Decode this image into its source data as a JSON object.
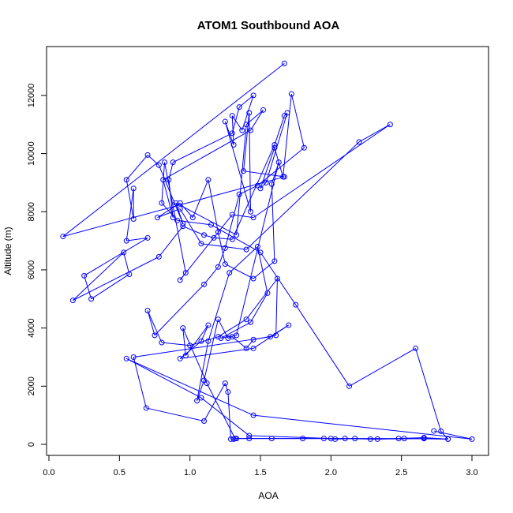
{
  "chart_data": {
    "type": "line",
    "title": "ATOM1 Southbound AOA",
    "xlabel": "AOA",
    "ylabel": "Altitude (m)",
    "xlim": [
      0,
      3.0
    ],
    "ylim": [
      0,
      13100
    ],
    "x_ticks": [
      "0.0",
      "0.5",
      "1.0",
      "1.5",
      "2.0",
      "2.5",
      "3.0"
    ],
    "y_ticks": [
      "0",
      "2000",
      "4000",
      "6000",
      "8000",
      "10000",
      "12000"
    ],
    "grid": false,
    "legend": "none",
    "series_color": "#0000ff",
    "marker": "open-circle",
    "series": [
      {
        "x": [
          1.67,
          0.1,
          1.67,
          1.38,
          1.42,
          1.43,
          1.25,
          1.31,
          1.3,
          1.37,
          1.45,
          1.35,
          1.3,
          0.88,
          0.85,
          0.88,
          0.81,
          1.43,
          1.52,
          1.4,
          1.33,
          0.9,
          0.95,
          0.78,
          0.7,
          0.55,
          0.6,
          0.6,
          0.55,
          0.7,
          0.25,
          0.3,
          0.57,
          0.53,
          0.17,
          0.78,
          0.95,
          1.1,
          1.17,
          1.3,
          1.6,
          1.67,
          1.69,
          1.54,
          1.5,
          1.6,
          1.66,
          1.72,
          1.81,
          1.48,
          1.35,
          1.25,
          1.2,
          1.1,
          0.75,
          0.7,
          0.8,
          1.0,
          1.2,
          1.4,
          1.62,
          1.61,
          1.45,
          1.4,
          1.3,
          1.27,
          1.2,
          1.1,
          1.05,
          1.13,
          1.28,
          1.48,
          1.55,
          1.43,
          1.22,
          1.33,
          1.63,
          1.58,
          1.6,
          1.45,
          1.25,
          1.2,
          1.13,
          1.02,
          0.93,
          0.77,
          0.93,
          1.08,
          1.4,
          2.2,
          2.42,
          1.45,
          1.3,
          0.93,
          0.97,
          0.82,
          0.8,
          0.91,
          1.15,
          1.5,
          1.75,
          2.13,
          2.6,
          2.78,
          2.83,
          2.66,
          2.48,
          2.33,
          2.17,
          2.03,
          1.95,
          1.8,
          1.42,
          1.33,
          1.31,
          1.29,
          1.27,
          1.25,
          1.1,
          0.69,
          0.6,
          1.57,
          1.7,
          1.45,
          0.93,
          1.08,
          1.13,
          0.97,
          0.95,
          1.12,
          1.32,
          1.58,
          2.52,
          2.83,
          2.66,
          2.28,
          2.1,
          2.0,
          1.42,
          1.08,
          0.55,
          1.45,
          3.0,
          2.73
        ],
        "y": [
          13100,
          7150,
          9200,
          9400,
          11400,
          8000,
          11100,
          10300,
          11300,
          10800,
          12000,
          11600,
          10700,
          9700,
          9100,
          7800,
          9100,
          10800,
          11500,
          11000,
          7200,
          8300,
          7600,
          9600,
          9950,
          9100,
          7750,
          8800,
          7000,
          7100,
          5800,
          5000,
          5850,
          6600,
          4950,
          6450,
          7500,
          7200,
          7100,
          7050,
          10300,
          11300,
          11400,
          9000,
          8800,
          10200,
          9200,
          12050,
          10200,
          8900,
          8600,
          6750,
          6100,
          5500,
          3750,
          4600,
          3500,
          3400,
          3700,
          4300,
          5700,
          3750,
          3600,
          3300,
          3700,
          3650,
          4300,
          2200,
          1500,
          3550,
          5900,
          6800,
          5200,
          4200,
          3650,
          3750,
          9700,
          8950,
          6300,
          5700,
          6200,
          7300,
          9100,
          7800,
          8300,
          7800,
          8100,
          6900,
          6700,
          10400,
          11000,
          7800,
          7900,
          5650,
          5900,
          9700,
          8300,
          7700,
          7550,
          6600,
          4800,
          2000,
          3300,
          450,
          180,
          230,
          200,
          180,
          200,
          180,
          200,
          200,
          200,
          200,
          180,
          180,
          1800,
          2100,
          800,
          1250,
          3000,
          3700,
          4100,
          3300,
          2950,
          3550,
          4100,
          3050,
          4000,
          2100,
          200,
          200,
          200,
          180,
          200,
          180,
          200,
          200,
          300,
          1600,
          2950,
          1000,
          180,
          460
        ]
      }
    ]
  }
}
